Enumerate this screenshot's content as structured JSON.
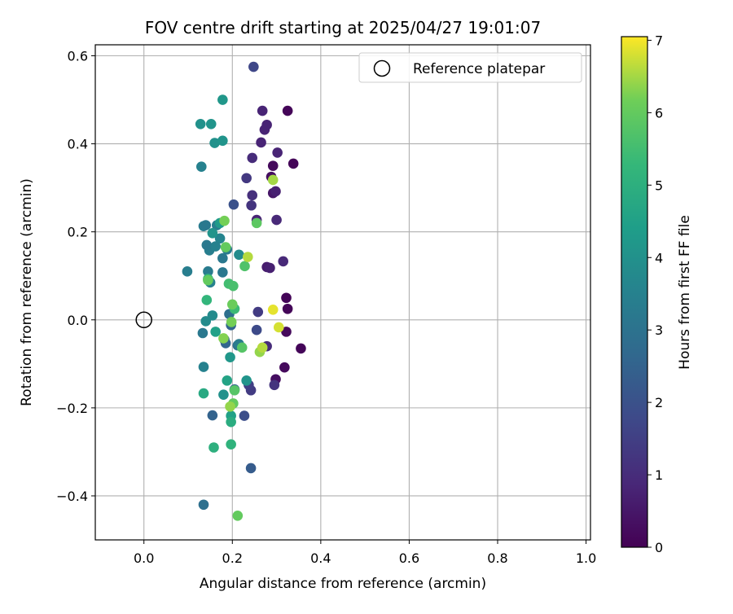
{
  "chart_data": {
    "type": "scatter",
    "title": "FOV centre drift starting at 2025/04/27 19:01:07",
    "xlabel": "Angular distance from reference (arcmin)",
    "ylabel": "Rotation from reference (arcmin)",
    "xlim": [
      -0.11,
      1.01
    ],
    "ylim": [
      -0.5,
      0.625
    ],
    "xticks": [
      0.0,
      0.2,
      0.4,
      0.6,
      0.8,
      1.0
    ],
    "xtick_labels": [
      "0.0",
      "0.2",
      "0.4",
      "0.6",
      "0.8",
      "1.0"
    ],
    "yticks": [
      -0.4,
      -0.2,
      0.0,
      0.2,
      0.4,
      0.6
    ],
    "ytick_labels": [
      "−0.4",
      "−0.2",
      "0.0",
      "0.2",
      "0.4",
      "0.6"
    ],
    "grid": true,
    "legend": {
      "placement": "top-right",
      "entries": [
        {
          "label": "Reference platepar",
          "marker": "open-circle"
        }
      ]
    },
    "reference_point": {
      "x": 0.0,
      "y": 0.0
    },
    "colorbar": {
      "label": "Hours from first FF file",
      "colormap": "viridis",
      "range": [
        0,
        7.05
      ],
      "ticks": [
        0,
        1,
        2,
        3,
        4,
        5,
        6,
        7
      ],
      "tick_labels": [
        "0",
        "1",
        "2",
        "3",
        "4",
        "5",
        "6",
        "7"
      ]
    },
    "points": [
      {
        "x": 0.325,
        "y": 0.475,
        "h": 0.1
      },
      {
        "x": 0.338,
        "y": 0.355,
        "h": 0.1
      },
      {
        "x": 0.355,
        "y": -0.065,
        "h": 0.1
      },
      {
        "x": 0.325,
        "y": 0.025,
        "h": 0.1
      },
      {
        "x": 0.322,
        "y": 0.05,
        "h": 0.1
      },
      {
        "x": 0.322,
        "y": -0.027,
        "h": 0.2
      },
      {
        "x": 0.318,
        "y": -0.108,
        "h": 0.2
      },
      {
        "x": 0.298,
        "y": -0.135,
        "h": 0.3
      },
      {
        "x": 0.292,
        "y": 0.35,
        "h": 0.2
      },
      {
        "x": 0.292,
        "y": 0.288,
        "h": 0.5
      },
      {
        "x": 0.298,
        "y": 0.292,
        "h": 0.7
      },
      {
        "x": 0.288,
        "y": 0.325,
        "h": 0.3
      },
      {
        "x": 0.268,
        "y": 0.475,
        "h": 0.8
      },
      {
        "x": 0.278,
        "y": 0.443,
        "h": 0.8
      },
      {
        "x": 0.273,
        "y": 0.432,
        "h": 0.8
      },
      {
        "x": 0.265,
        "y": 0.403,
        "h": 0.8
      },
      {
        "x": 0.302,
        "y": 0.38,
        "h": 0.8
      },
      {
        "x": 0.245,
        "y": 0.368,
        "h": 1.0
      },
      {
        "x": 0.278,
        "y": 0.12,
        "h": 0.6
      },
      {
        "x": 0.285,
        "y": 0.118,
        "h": 0.7
      },
      {
        "x": 0.315,
        "y": 0.133,
        "h": 0.9
      },
      {
        "x": 0.3,
        "y": 0.227,
        "h": 0.9
      },
      {
        "x": 0.255,
        "y": 0.227,
        "h": 0.8
      },
      {
        "x": 0.245,
        "y": 0.283,
        "h": 1.1
      },
      {
        "x": 0.243,
        "y": 0.26,
        "h": 1.2
      },
      {
        "x": 0.232,
        "y": 0.322,
        "h": 1.3
      },
      {
        "x": 0.278,
        "y": -0.06,
        "h": 1.0
      },
      {
        "x": 0.258,
        "y": 0.018,
        "h": 1.4
      },
      {
        "x": 0.255,
        "y": -0.023,
        "h": 1.8
      },
      {
        "x": 0.295,
        "y": -0.148,
        "h": 1.2
      },
      {
        "x": 0.242,
        "y": -0.16,
        "h": 1.4
      },
      {
        "x": 0.237,
        "y": -0.148,
        "h": 1.5
      },
      {
        "x": 0.227,
        "y": -0.218,
        "h": 1.9
      },
      {
        "x": 0.248,
        "y": 0.575,
        "h": 1.7
      },
      {
        "x": 0.203,
        "y": 0.262,
        "h": 2.0
      },
      {
        "x": 0.242,
        "y": -0.337,
        "h": 2.3
      },
      {
        "x": 0.135,
        "y": -0.42,
        "h": 2.9
      },
      {
        "x": 0.155,
        "y": -0.217,
        "h": 2.5
      },
      {
        "x": 0.182,
        "y": -0.045,
        "h": 2.7
      },
      {
        "x": 0.193,
        "y": 0.013,
        "h": 2.9
      },
      {
        "x": 0.212,
        "y": -0.058,
        "h": 2.9
      },
      {
        "x": 0.205,
        "y": -0.158,
        "h": 2.5
      },
      {
        "x": 0.185,
        "y": -0.053,
        "h": 2.6
      },
      {
        "x": 0.197,
        "y": -0.012,
        "h": 2.6
      },
      {
        "x": 0.178,
        "y": 0.108,
        "h": 3.2
      },
      {
        "x": 0.178,
        "y": 0.14,
        "h": 3.2
      },
      {
        "x": 0.188,
        "y": 0.16,
        "h": 3.3
      },
      {
        "x": 0.148,
        "y": 0.158,
        "h": 3.4
      },
      {
        "x": 0.142,
        "y": 0.17,
        "h": 3.2
      },
      {
        "x": 0.145,
        "y": 0.11,
        "h": 3.3
      },
      {
        "x": 0.15,
        "y": 0.085,
        "h": 3.5
      },
      {
        "x": 0.098,
        "y": 0.11,
        "h": 3.4
      },
      {
        "x": 0.13,
        "y": 0.348,
        "h": 3.5
      },
      {
        "x": 0.135,
        "y": 0.213,
        "h": 3.3
      },
      {
        "x": 0.14,
        "y": 0.215,
        "h": 3.2
      },
      {
        "x": 0.133,
        "y": -0.03,
        "h": 3.2
      },
      {
        "x": 0.165,
        "y": 0.215,
        "h": 3.4
      },
      {
        "x": 0.172,
        "y": 0.185,
        "h": 3.6
      },
      {
        "x": 0.162,
        "y": 0.167,
        "h": 3.5
      },
      {
        "x": 0.215,
        "y": 0.148,
        "h": 3.8
      },
      {
        "x": 0.215,
        "y": -0.055,
        "h": 3.3
      },
      {
        "x": 0.135,
        "y": -0.107,
        "h": 3.5
      },
      {
        "x": 0.14,
        "y": -0.003,
        "h": 3.8
      },
      {
        "x": 0.155,
        "y": 0.01,
        "h": 3.8
      },
      {
        "x": 0.16,
        "y": 0.402,
        "h": 4.0
      },
      {
        "x": 0.178,
        "y": 0.407,
        "h": 4.1
      },
      {
        "x": 0.128,
        "y": 0.445,
        "h": 4.0
      },
      {
        "x": 0.152,
        "y": 0.445,
        "h": 4.1
      },
      {
        "x": 0.178,
        "y": 0.5,
        "h": 4.2
      },
      {
        "x": 0.155,
        "y": 0.197,
        "h": 4.1
      },
      {
        "x": 0.172,
        "y": 0.22,
        "h": 4.3
      },
      {
        "x": 0.232,
        "y": -0.138,
        "h": 4.1
      },
      {
        "x": 0.18,
        "y": -0.17,
        "h": 4.0
      },
      {
        "x": 0.195,
        "y": -0.085,
        "h": 4.2
      },
      {
        "x": 0.162,
        "y": -0.027,
        "h": 4.5
      },
      {
        "x": 0.188,
        "y": -0.138,
        "h": 4.6
      },
      {
        "x": 0.197,
        "y": -0.218,
        "h": 4.5
      },
      {
        "x": 0.197,
        "y": -0.232,
        "h": 4.9
      },
      {
        "x": 0.135,
        "y": -0.167,
        "h": 4.8
      },
      {
        "x": 0.158,
        "y": -0.29,
        "h": 5.0
      },
      {
        "x": 0.197,
        "y": -0.283,
        "h": 5.1
      },
      {
        "x": 0.142,
        "y": 0.045,
        "h": 5.2
      },
      {
        "x": 0.145,
        "y": 0.093,
        "h": 5.2
      },
      {
        "x": 0.192,
        "y": 0.082,
        "h": 5.5
      },
      {
        "x": 0.202,
        "y": 0.077,
        "h": 5.6
      },
      {
        "x": 0.228,
        "y": 0.122,
        "h": 5.7
      },
      {
        "x": 0.205,
        "y": 0.025,
        "h": 5.4
      },
      {
        "x": 0.222,
        "y": -0.063,
        "h": 5.8
      },
      {
        "x": 0.185,
        "y": 0.165,
        "h": 6.0
      },
      {
        "x": 0.182,
        "y": 0.225,
        "h": 6.2
      },
      {
        "x": 0.255,
        "y": 0.22,
        "h": 5.9
      },
      {
        "x": 0.145,
        "y": 0.09,
        "h": 6.0
      },
      {
        "x": 0.2,
        "y": 0.035,
        "h": 6.1
      },
      {
        "x": 0.198,
        "y": -0.005,
        "h": 6.2
      },
      {
        "x": 0.18,
        "y": -0.042,
        "h": 6.3
      },
      {
        "x": 0.205,
        "y": -0.16,
        "h": 5.8
      },
      {
        "x": 0.202,
        "y": -0.19,
        "h": 6.0
      },
      {
        "x": 0.195,
        "y": -0.197,
        "h": 6.4
      },
      {
        "x": 0.212,
        "y": -0.445,
        "h": 6.0
      },
      {
        "x": 0.262,
        "y": -0.073,
        "h": 6.4
      },
      {
        "x": 0.268,
        "y": -0.063,
        "h": 6.6
      },
      {
        "x": 0.235,
        "y": 0.143,
        "h": 6.6
      },
      {
        "x": 0.292,
        "y": 0.318,
        "h": 6.5
      },
      {
        "x": 0.292,
        "y": 0.023,
        "h": 6.9
      },
      {
        "x": 0.305,
        "y": -0.017,
        "h": 6.8
      }
    ]
  }
}
